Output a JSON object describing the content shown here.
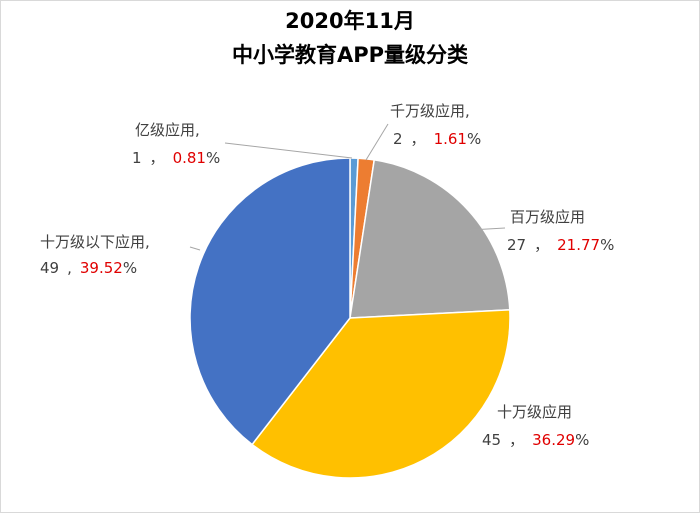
{
  "chart_data": {
    "type": "pie",
    "title": "2020年11月",
    "subtitle": "中小学教育APP量级分类",
    "categories": [
      "亿级应用,",
      "千万级应用,",
      "百万级应用",
      "十万级应用",
      "十万级以下应用,"
    ],
    "values": [
      1,
      2,
      27,
      45,
      49
    ],
    "percentages": [
      0.81,
      1.61,
      21.77,
      36.29,
      39.52
    ],
    "separators": [
      "，",
      "，",
      "，",
      "，",
      ","
    ],
    "percent_unit": "%",
    "colors": [
      "#5b9bd5",
      "#ed7d31",
      "#a5a5a5",
      "#ffc000",
      "#4472c4"
    ]
  }
}
